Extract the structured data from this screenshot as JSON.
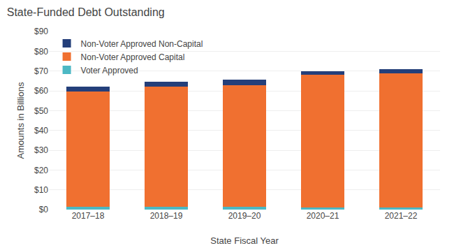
{
  "chart_data": {
    "type": "bar",
    "stacked": true,
    "title": "State-Funded Debt Outstanding",
    "xlabel": "State Fiscal Year",
    "ylabel": "Amounts in Billions",
    "categories": [
      "2017–18",
      "2018–19",
      "2019–20",
      "2020–21",
      "2021–22"
    ],
    "series": [
      {
        "name": "Voter Approved",
        "color": "#4cb8c4",
        "values": [
          1.5,
          1.5,
          1.5,
          1.2,
          1.2
        ]
      },
      {
        "name": "Non-Voter Approved Capital",
        "color": "#f07030",
        "values": [
          58.0,
          60.5,
          61.5,
          66.8,
          67.8
        ]
      },
      {
        "name": "Non-Voter Approved Non-Capital",
        "color": "#243f7a",
        "values": [
          2.5,
          2.5,
          2.5,
          2.0,
          2.0
        ]
      }
    ],
    "ylim": [
      0,
      90
    ],
    "yticks": [
      {
        "value": 0,
        "label": "$0"
      },
      {
        "value": 10,
        "label": "$10"
      },
      {
        "value": 20,
        "label": "$20"
      },
      {
        "value": 30,
        "label": "$30"
      },
      {
        "value": 40,
        "label": "$40"
      },
      {
        "value": 50,
        "label": "$50"
      },
      {
        "value": 60,
        "label": "$60"
      },
      {
        "value": 70,
        "label": "$70"
      },
      {
        "value": 80,
        "label": "$80"
      },
      {
        "value": 90,
        "label": "$90"
      }
    ],
    "grid": true,
    "legend": "upper left"
  }
}
